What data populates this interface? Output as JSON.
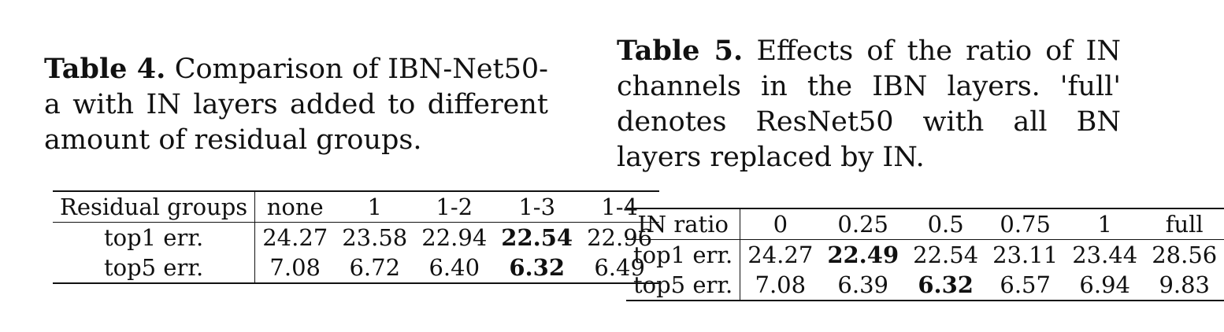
{
  "table4": {
    "label": "Table 4.",
    "caption": "Comparison of IBN-Net50-a with IN layers added to different amount of residual groups.",
    "header": [
      "Residual groups",
      "none",
      "1",
      "1-2",
      "1-3",
      "1-4"
    ],
    "rows": [
      [
        "top1 err.",
        "24.27",
        "23.58",
        "22.94",
        "22.54",
        "22.96"
      ],
      [
        "top5 err.",
        "7.08",
        "6.72",
        "6.40",
        "6.32",
        "6.49"
      ]
    ]
  },
  "table5": {
    "label": "Table 5.",
    "caption": "Effects of the ratio of IN channels in the IBN layers. 'full' denotes ResNet50 with all BN layers replaced by IN.",
    "header": [
      "IN ratio",
      "0",
      "0.25",
      "0.5",
      "0.75",
      "1",
      "full"
    ],
    "rows": [
      [
        "top1 err.",
        "24.27",
        "22.49",
        "22.54",
        "23.11",
        "23.44",
        "28.56"
      ],
      [
        "top5 err.",
        "7.08",
        "6.39",
        "6.32",
        "6.57",
        "6.94",
        "9.83"
      ]
    ]
  }
}
